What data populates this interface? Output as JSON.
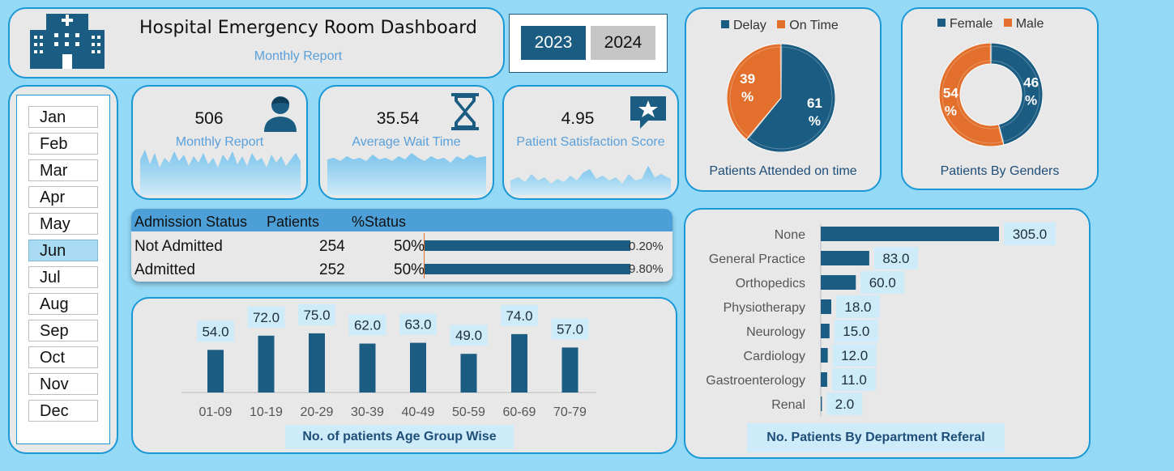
{
  "header": {
    "title": "Hospital Emergency Room Dashboard",
    "subtitle": "Monthly Report",
    "icon": "hospital-icon"
  },
  "years": {
    "items": [
      "2023",
      "2024"
    ],
    "selected": "2023"
  },
  "months": {
    "items": [
      "Jan",
      "Feb",
      "Mar",
      "Apr",
      "May",
      "Jun",
      "Jul",
      "Aug",
      "Sep",
      "Oct",
      "Nov",
      "Dec"
    ],
    "selected": "Jun"
  },
  "kpis": [
    {
      "value": "506",
      "label": "Monthly Report",
      "icon": "patient-icon"
    },
    {
      "value": "35.54",
      "label": "Average Wait Time",
      "icon": "hourglass-icon"
    },
    {
      "value": "4.95",
      "label": "Patient Satisfaction Score",
      "icon": "star-badge-icon"
    }
  ],
  "admission": {
    "headers": [
      "Admission Status",
      "Patients",
      "%Status"
    ],
    "rows": [
      {
        "status": "Not Admitted",
        "patients": "254",
        "pct": "50%",
        "bar_text": "0.20%"
      },
      {
        "status": "Admitted",
        "patients": "252",
        "pct": "50%",
        "bar_text": "9.80%"
      }
    ]
  },
  "colors": {
    "primary": "#1b5c82",
    "accent": "#e2702c",
    "border": "#1a98d6",
    "background": "#94d9f5"
  },
  "chart_data": [
    {
      "type": "pie",
      "title": "Patients Attended on time",
      "series": [
        {
          "name": "Delay",
          "value": 61,
          "label": "61\n%"
        },
        {
          "name": "On Time",
          "value": 39,
          "label": "39\n%"
        }
      ],
      "legend": "top"
    },
    {
      "type": "pie",
      "subtype": "donut",
      "title": "Patients By Genders",
      "series": [
        {
          "name": "Female",
          "value": 46,
          "label": "46\n%"
        },
        {
          "name": "Male",
          "value": 54,
          "label": "54\n%"
        }
      ],
      "legend": "top"
    },
    {
      "type": "bar",
      "title": "No. of patients Age Group Wise",
      "categories": [
        "01-09",
        "10-19",
        "20-29",
        "30-39",
        "40-49",
        "50-59",
        "60-69",
        "70-79"
      ],
      "values": [
        54.0,
        72.0,
        75.0,
        62.0,
        63.0,
        49.0,
        74.0,
        57.0
      ],
      "labels": [
        "54.0",
        "72.0",
        "75.0",
        "62.0",
        "63.0",
        "49.0",
        "74.0",
        "57.0"
      ],
      "ylim": [
        0,
        80
      ]
    },
    {
      "type": "bar",
      "orientation": "horizontal",
      "title": "No. Patients By Department Referal",
      "categories": [
        "None",
        "General Practice",
        "Orthopedics",
        "Physiotherapy",
        "Neurology",
        "Cardiology",
        "Gastroenterology",
        "Renal"
      ],
      "values": [
        305.0,
        83.0,
        60.0,
        18.0,
        15.0,
        12.0,
        11.0,
        2.0
      ],
      "labels": [
        "305.0",
        "83.0",
        "60.0",
        "18.0",
        "15.0",
        "12.0",
        "11.0",
        "2.0"
      ],
      "xlim": [
        0,
        305
      ]
    }
  ]
}
